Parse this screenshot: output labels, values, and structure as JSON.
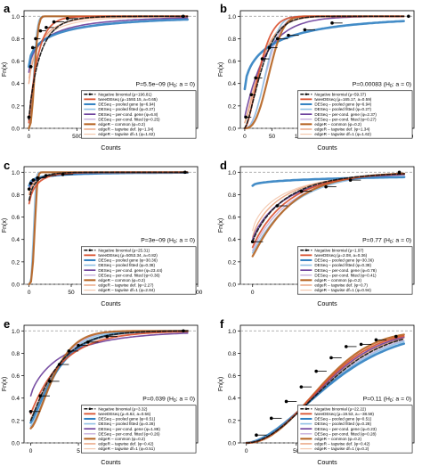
{
  "figure": {
    "legend_entries": [
      {
        "key": "nb",
        "color": "#111111",
        "dash": "4,2",
        "width": 1.6,
        "dot": true
      },
      {
        "key": "tw",
        "color": "#d9502f",
        "dash": "",
        "width": 1.8
      },
      {
        "key": "pool",
        "color": "#2f7fc1",
        "dash": "",
        "width": 2.6
      },
      {
        "key": "poolfit",
        "color": "#8fbfe3",
        "dash": "",
        "width": 1.6
      },
      {
        "key": "per",
        "color": "#6a3d9a",
        "dash": "",
        "width": 1.6
      },
      {
        "key": "perfit",
        "color": "#c7b0dd",
        "dash": "",
        "width": 1.4
      },
      {
        "key": "common",
        "color": "#b5621f",
        "dash": "",
        "width": 2.2
      },
      {
        "key": "tagdef",
        "color": "#e9a07a",
        "dash": "",
        "width": 1.4
      },
      {
        "key": "tagdf1",
        "color": "#f3c7ad",
        "dash": "",
        "width": 1.2
      }
    ]
  },
  "chart_data": [
    {
      "type": "line",
      "panel_letter": "a",
      "xlabel": "Counts",
      "ylabel": "Fn(x)",
      "xlim": [
        -50,
        1750
      ],
      "ylim": [
        0,
        1.05
      ],
      "xticks": [
        "0",
        "500",
        "1000",
        "1500"
      ],
      "xtick_values": [
        0,
        500,
        1000,
        1500
      ],
      "yticks": [
        "0.0",
        "0.2",
        "0.4",
        "0.6",
        "0.8",
        "1.0"
      ],
      "ytick_values": [
        0,
        0.2,
        0.4,
        0.6,
        0.8,
        1.0
      ],
      "pvalue": "P=5.5e−09 (H",
      "pvalue_sub": "0",
      "pvalue_tail": ": a = 0)",
      "legend_text": [
        "Negative binomial (μ=196.81)",
        "tweeDEseq (μ=1593.15, a=0.65)",
        "DESeq – pooled gene (φ=6.94)",
        "DESeq – pooled fitted (φ=0.27)",
        "DESeq – per-cond. gene (φ=6.8)",
        "DESeq – per-cond. fitted (φ=0.25)",
        "edgeR – common (φ=0.2)",
        "edgeR – tagwise def. (φ=1.34)",
        "edgeR – tagwise df=1 (φ=1.62)"
      ],
      "series": [
        {
          "key": "nb",
          "start": 0.08,
          "scale": 120,
          "shape": 0.9
        },
        {
          "key": "tw",
          "start": 0.05,
          "scale": 95,
          "shape": 1.0
        },
        {
          "key": "pool",
          "start": 0.55,
          "scale": 260,
          "shape": 0.55
        },
        {
          "key": "poolfit",
          "start": 0.0,
          "scale": 60,
          "shape": 2.2
        },
        {
          "key": "per",
          "start": 0.5,
          "scale": 200,
          "shape": 0.6
        },
        {
          "key": "perfit",
          "start": 0.0,
          "scale": 65,
          "shape": 2.0
        },
        {
          "key": "common",
          "start": 0.0,
          "scale": 70,
          "shape": 2.4
        },
        {
          "key": "tagdef",
          "start": 0.4,
          "scale": 130,
          "shape": 0.8
        },
        {
          "key": "tagdf1",
          "start": 0.45,
          "scale": 150,
          "shape": 0.7
        }
      ],
      "ecdf_points": [
        [
          0,
          0.1
        ],
        [
          20,
          0.55
        ],
        [
          40,
          0.72
        ],
        [
          70,
          0.8
        ],
        [
          120,
          0.87
        ],
        [
          180,
          0.9
        ],
        [
          260,
          0.95
        ],
        [
          400,
          0.98
        ],
        [
          1600,
          1.0
        ]
      ]
    },
    {
      "type": "line",
      "panel_letter": "b",
      "xlabel": "Counts",
      "ylabel": "Fn(x)",
      "xlim": [
        -8,
        310
      ],
      "ylim": [
        0,
        1.05
      ],
      "xticks": [
        "0",
        "50",
        "100",
        "150",
        "200",
        "250",
        "300"
      ],
      "xtick_values": [
        0,
        50,
        100,
        150,
        200,
        250,
        300
      ],
      "yticks": [
        "0.0",
        "0.2",
        "0.4",
        "0.6",
        "0.8",
        "1.0"
      ],
      "ytick_values": [
        0,
        0.2,
        0.4,
        0.6,
        0.8,
        1.0
      ],
      "pvalue": "P=0.00083 (H",
      "pvalue_sub": "0",
      "pvalue_tail": ": a = 0)",
      "legend_text": [
        "Negative binomial (μ=59.37)",
        "tweeDEseq (μ=165.17, a=0.59)",
        "DESeq – pooled gene (φ=6.94)",
        "DESeq – pooled fitted (φ=0.27)",
        "DESeq – per-cond. gene (φ=2.37)",
        "DESeq – per-cond. fitted (φ=0.27)",
        "edgeR – common (φ=0.2)",
        "edgeR – tagwise def. (φ=1.34)",
        "edgeR – tagwise df=1 (φ=1.62)"
      ],
      "series": [
        {
          "key": "nb",
          "start": 0.0,
          "scale": 38,
          "shape": 1.4
        },
        {
          "key": "tw",
          "start": 0.0,
          "scale": 33,
          "shape": 1.6
        },
        {
          "key": "pool",
          "start": 0.35,
          "scale": 55,
          "shape": 0.6
        },
        {
          "key": "poolfit",
          "start": 0.0,
          "scale": 45,
          "shape": 2.4
        },
        {
          "key": "per",
          "start": 0.1,
          "scale": 40,
          "shape": 1.0
        },
        {
          "key": "perfit",
          "start": 0.0,
          "scale": 47,
          "shape": 2.2
        },
        {
          "key": "common",
          "start": 0.0,
          "scale": 52,
          "shape": 2.6
        },
        {
          "key": "tagdef",
          "start": 0.05,
          "scale": 36,
          "shape": 1.3
        },
        {
          "key": "tagdf1",
          "start": 0.05,
          "scale": 34,
          "shape": 1.2
        }
      ],
      "ecdf_points": [
        [
          2,
          0.1
        ],
        [
          12,
          0.3
        ],
        [
          20,
          0.45
        ],
        [
          32,
          0.62
        ],
        [
          45,
          0.72
        ],
        [
          60,
          0.8
        ],
        [
          80,
          0.83
        ],
        [
          110,
          0.88
        ],
        [
          160,
          0.94
        ],
        [
          300,
          1.0
        ]
      ]
    },
    {
      "type": "line",
      "panel_letter": "c",
      "xlabel": "Counts",
      "ylabel": "Fn(x)",
      "xlim": [
        -6,
        200
      ],
      "ylim": [
        0,
        1.05
      ],
      "xticks": [
        "0",
        "50",
        "100",
        "150",
        "200"
      ],
      "xtick_values": [
        0,
        50,
        100,
        150,
        200
      ],
      "yticks": [
        "0.0",
        "0.2",
        "0.4",
        "0.6",
        "0.8",
        "1.0"
      ],
      "ytick_values": [
        0,
        0.2,
        0.4,
        0.6,
        0.8,
        1.0
      ],
      "pvalue": "P=3e−09 (H",
      "pvalue_sub": "0",
      "pvalue_tail": ": a = 0)",
      "legend_text": [
        "Negative binomial (μ=25.31)",
        "tweeDEseq (μ=5053.34, a=0.82)",
        "DESeq – pooled gene (φ=30.36)",
        "DESeq – pooled fitted (φ=0.38)",
        "DESeq – per-cond. gene (φ=23.44)",
        "DESeq – per-cond. fitted (φ=0.36)",
        "edgeR – common (φ=0.2)",
        "edgeR – tagwise def. (φ=2.27)",
        "edgeR – tagwise df=1 (φ=2.84)"
      ],
      "series": [
        {
          "key": "nb",
          "start": 0.75,
          "scale": 8,
          "shape": 0.8
        },
        {
          "key": "tw",
          "start": 0.72,
          "scale": 10,
          "shape": 0.8
        },
        {
          "key": "pool",
          "start": 0.88,
          "scale": 14,
          "shape": 0.5
        },
        {
          "key": "poolfit",
          "start": 0.0,
          "scale": 6,
          "shape": 3.0
        },
        {
          "key": "per",
          "start": 0.85,
          "scale": 12,
          "shape": 0.5
        },
        {
          "key": "perfit",
          "start": 0.0,
          "scale": 7,
          "shape": 2.8
        },
        {
          "key": "common",
          "start": 0.0,
          "scale": 7.5,
          "shape": 3.2
        },
        {
          "key": "tagdef",
          "start": 0.8,
          "scale": 9,
          "shape": 0.7
        },
        {
          "key": "tagdf1",
          "start": 0.82,
          "scale": 11,
          "shape": 0.6
        }
      ],
      "ecdf_points": [
        [
          0,
          0.85
        ],
        [
          2,
          0.9
        ],
        [
          5,
          0.93
        ],
        [
          10,
          0.95
        ],
        [
          20,
          0.97
        ],
        [
          40,
          0.98
        ],
        [
          185,
          1.0
        ]
      ]
    },
    {
      "type": "line",
      "panel_letter": "d",
      "xlabel": "Counts",
      "ylabel": "Fn(x)",
      "xlim": [
        -0.5,
        6.6
      ],
      "ylim": [
        0,
        1.05
      ],
      "xticks": [
        "0",
        "2",
        "4",
        "6"
      ],
      "xtick_values": [
        0,
        2,
        4,
        6
      ],
      "yticks": [
        "0.0",
        "0.2",
        "0.4",
        "0.6",
        "0.8",
        "1.0"
      ],
      "ytick_values": [
        0,
        0.2,
        0.4,
        0.6,
        0.8,
        1.0
      ],
      "pvalue": "P=0.77 (H",
      "pvalue_sub": "0",
      "pvalue_tail": ": a = 0)",
      "legend_text": [
        "Negative binomial (μ=1.97)",
        "tweeDEseq (μ=2.08, a=0.36)",
        "DESeq – pooled gene (φ=30.36)",
        "DESeq – pooled fitted (φ=0.38)",
        "DESeq – per-cond. gene (φ=0.78)",
        "DESeq – per-cond. fitted (φ=0.41)",
        "edgeR – common (φ=0.2)",
        "edgeR – tagwise def. (φ=0.7)",
        "edgeR – tagwise df=1 (φ=0.94)"
      ],
      "series": [
        {
          "key": "nb",
          "start": 0.38,
          "scale": 1.4,
          "shape": 0.9
        },
        {
          "key": "tw",
          "start": 0.33,
          "scale": 1.5,
          "shape": 0.95
        },
        {
          "key": "pool",
          "start": 0.88,
          "scale": 6,
          "shape": 0.5
        },
        {
          "key": "poolfit",
          "start": 0.28,
          "scale": 1.7,
          "shape": 1.0
        },
        {
          "key": "per",
          "start": 0.4,
          "scale": 1.5,
          "shape": 0.85
        },
        {
          "key": "perfit",
          "start": 0.3,
          "scale": 1.6,
          "shape": 0.95
        },
        {
          "key": "common",
          "start": 0.25,
          "scale": 1.6,
          "shape": 1.05
        },
        {
          "key": "tagdef",
          "start": 0.42,
          "scale": 1.3,
          "shape": 0.8
        },
        {
          "key": "tagdf1",
          "start": 0.48,
          "scale": 1.3,
          "shape": 0.75
        }
      ],
      "ecdf_points": [
        [
          0,
          0.38
        ],
        [
          1,
          0.7
        ],
        [
          2,
          0.83
        ],
        [
          3,
          0.87
        ],
        [
          4,
          0.93
        ],
        [
          6,
          1.0
        ]
      ]
    },
    {
      "type": "line",
      "panel_letter": "e",
      "xlabel": "Counts",
      "ylabel": "Fn(x)",
      "xlim": [
        -0.7,
        17.5
      ],
      "ylim": [
        0,
        1.05
      ],
      "xticks": [
        "0",
        "5",
        "10",
        "15"
      ],
      "xtick_values": [
        0,
        5,
        10,
        15
      ],
      "yticks": [
        "0.0",
        "0.2",
        "0.4",
        "0.6",
        "0.8",
        "1.0"
      ],
      "ytick_values": [
        0,
        0.2,
        0.4,
        0.6,
        0.8,
        1.0
      ],
      "pvalue": "P=0.039 (H",
      "pvalue_sub": "0",
      "pvalue_tail": ": a = 0)",
      "legend_text": [
        "Negative binomial (μ=3.32)",
        "tweeDEseq (μ=6.62, a=0.56)",
        "DESeq – pooled gene (φ=0.51)",
        "DESeq – pooled fitted (φ=0.28)",
        "DESeq – per-cond. gene (φ=1.88)",
        "DESeq – per-cond. fitted (φ=0.26)",
        "edgeR – common (φ=0.2)",
        "edgeR – tagwise def. (φ=0.42)",
        "edgeR – tagwise df=1 (φ=0.51)"
      ],
      "series": [
        {
          "key": "nb",
          "start": 0.2,
          "scale": 3.0,
          "shape": 1.1
        },
        {
          "key": "tw",
          "start": 0.26,
          "scale": 3.4,
          "shape": 1.0
        },
        {
          "key": "pool",
          "start": 0.18,
          "scale": 3.2,
          "shape": 1.2
        },
        {
          "key": "poolfit",
          "start": 0.15,
          "scale": 3.1,
          "shape": 1.35
        },
        {
          "key": "per",
          "start": 0.42,
          "scale": 3.6,
          "shape": 0.8
        },
        {
          "key": "perfit",
          "start": 0.14,
          "scale": 3.0,
          "shape": 1.4
        },
        {
          "key": "common",
          "start": 0.13,
          "scale": 2.9,
          "shape": 1.45
        },
        {
          "key": "tagdef",
          "start": 0.2,
          "scale": 3.2,
          "shape": 1.15
        },
        {
          "key": "tagdf1",
          "start": 0.22,
          "scale": 3.3,
          "shape": 1.1
        }
      ],
      "ecdf_points": [
        [
          0,
          0.28
        ],
        [
          1,
          0.42
        ],
        [
          2,
          0.55
        ],
        [
          3,
          0.7
        ],
        [
          4,
          0.82
        ],
        [
          5,
          0.87
        ],
        [
          6,
          0.9
        ],
        [
          8,
          0.95
        ],
        [
          16,
          1.0
        ]
      ]
    },
    {
      "type": "line",
      "panel_letter": "f",
      "xlabel": "Counts",
      "ylabel": "Fn(x)",
      "xlim": [
        -6,
        168
      ],
      "ylim": [
        0,
        1.05
      ],
      "xticks": [
        "0",
        "50",
        "100",
        "150"
      ],
      "xtick_values": [
        0,
        50,
        100,
        150
      ],
      "yticks": [
        "0.0",
        "0.2",
        "0.4",
        "0.6",
        "0.8",
        "1.0"
      ],
      "ytick_values": [
        0,
        0.2,
        0.4,
        0.6,
        0.8,
        1.0
      ],
      "pvalue": "P=0.11 (H",
      "pvalue_sub": "0",
      "pvalue_tail": ": a = 0)",
      "legend_text": [
        "Negative binomial (μ=22.22)",
        "tweeDEseq (μ=19.53, a=−38.59)",
        "DESeq – pooled gene (φ=0.51)",
        "DESeq – pooled fitted (φ=0.28)",
        "DESeq – per-cond. gene (φ=0.23)",
        "DESeq – per-cond. fitted (φ=0.28)",
        "edgeR – common (φ=0.2)",
        "edgeR – tagwise def. (φ=0.42)",
        "edgeR – tagwise df=1 (φ=0.2)"
      ],
      "series": [
        {
          "key": "nb",
          "start": 0.0,
          "scale": 95,
          "shape": 1.9
        },
        {
          "key": "tw",
          "start": 0.0,
          "scale": 90,
          "shape": 2.0
        },
        {
          "key": "pool",
          "start": 0.0,
          "scale": 100,
          "shape": 1.7
        },
        {
          "key": "poolfit",
          "start": 0.0,
          "scale": 98,
          "shape": 1.8
        },
        {
          "key": "per",
          "start": 0.0,
          "scale": 92,
          "shape": 1.95
        },
        {
          "key": "perfit",
          "start": 0.0,
          "scale": 97,
          "shape": 1.85
        },
        {
          "key": "common",
          "start": 0.0,
          "scale": 88,
          "shape": 2.1
        },
        {
          "key": "tagdef",
          "start": 0.0,
          "scale": 93,
          "shape": 1.9
        },
        {
          "key": "tagdf1",
          "start": 0.0,
          "scale": 90,
          "shape": 2.05
        }
      ],
      "ecdf_points": [
        [
          10,
          0.07
        ],
        [
          25,
          0.22
        ],
        [
          40,
          0.37
        ],
        [
          55,
          0.5
        ],
        [
          70,
          0.64
        ],
        [
          85,
          0.76
        ],
        [
          100,
          0.86
        ],
        [
          115,
          0.88
        ],
        [
          130,
          0.92
        ],
        [
          150,
          0.95
        ]
      ]
    }
  ]
}
